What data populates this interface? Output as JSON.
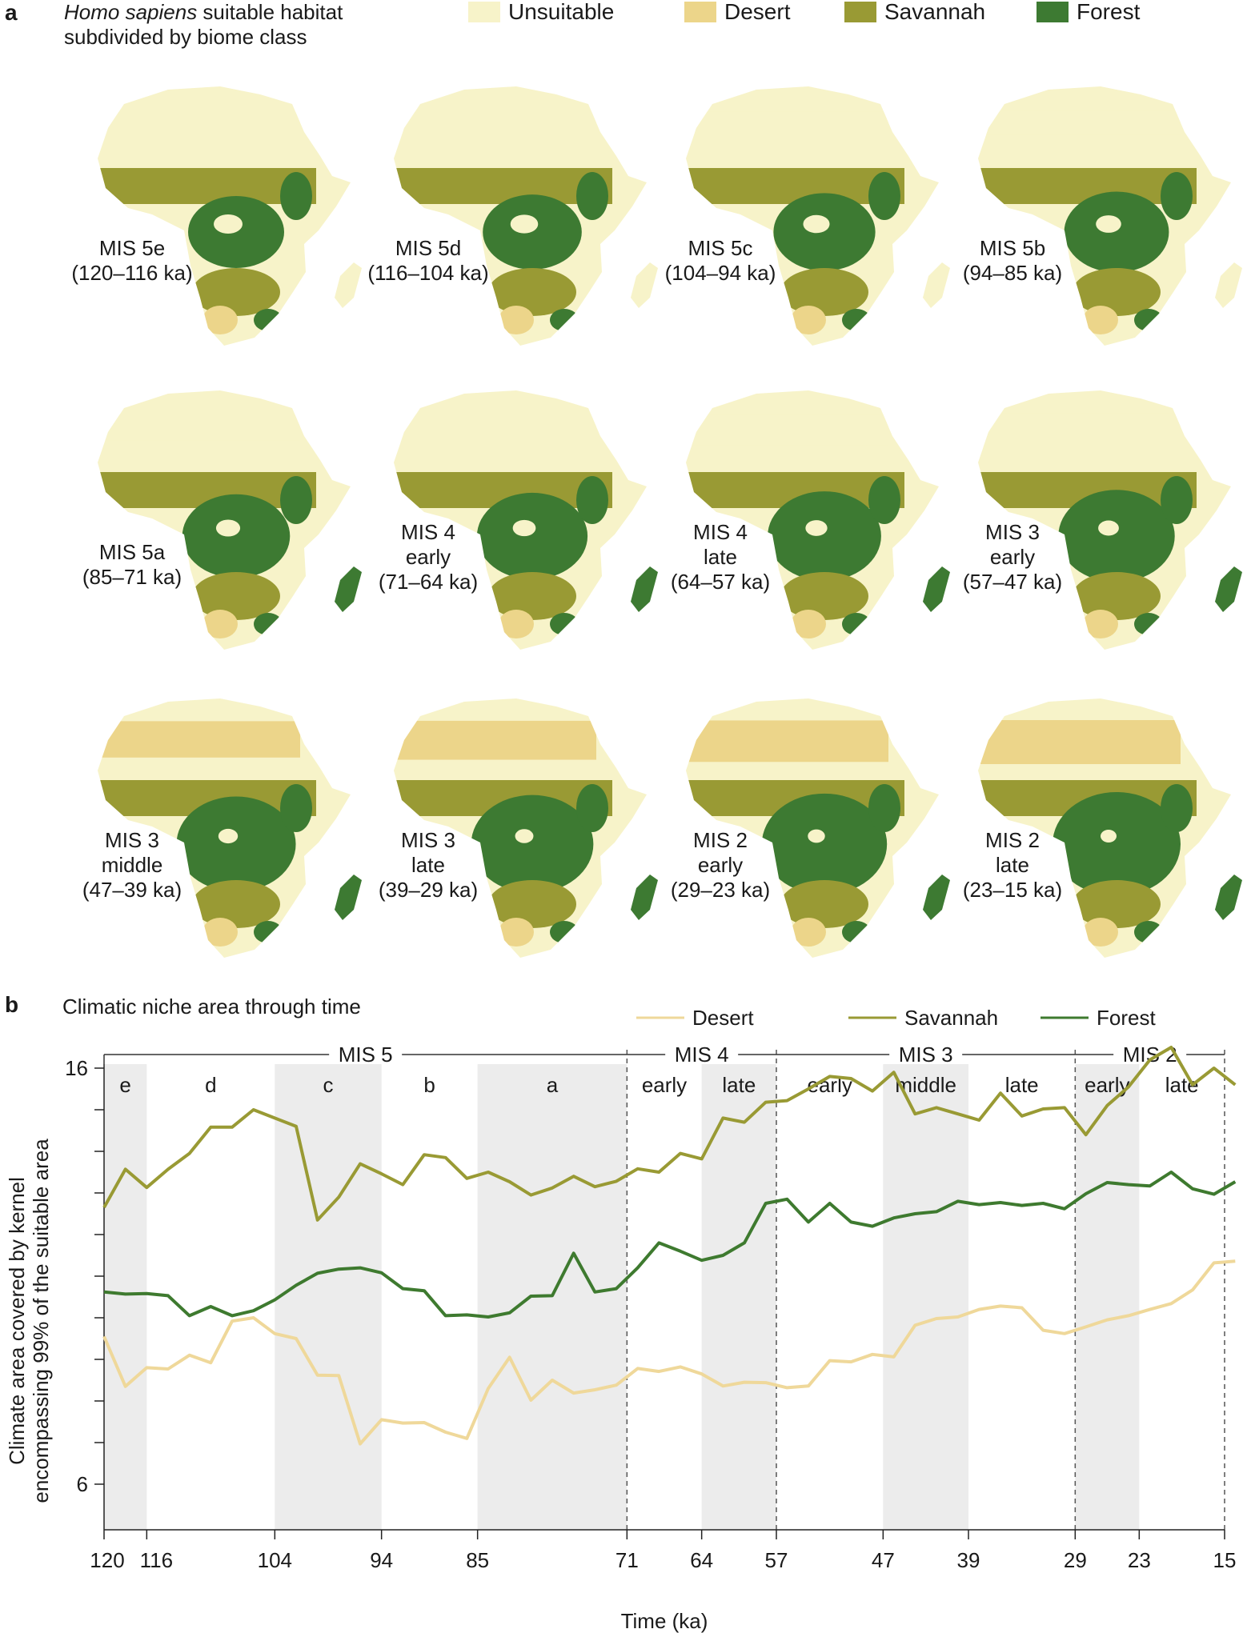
{
  "panel_a": {
    "letter": "a",
    "title_italic": "Homo sapiens",
    "title_rest": " suitable habitat",
    "title_line2": "subdivided by biome class",
    "legend": [
      {
        "label": "Unsuitable",
        "color": "#f7f3c9"
      },
      {
        "label": "Desert",
        "color": "#ecd58a"
      },
      {
        "label": "Savannah",
        "color": "#999a34"
      },
      {
        "label": "Forest",
        "color": "#3d7a32"
      }
    ],
    "maps": [
      {
        "l1": "MIS 5e",
        "l2": "(120–116 ka)",
        "l3": ""
      },
      {
        "l1": "MIS 5d",
        "l2": "(116–104 ka)",
        "l3": ""
      },
      {
        "l1": "MIS 5c",
        "l2": "(104–94 ka)",
        "l3": ""
      },
      {
        "l1": "MIS 5b",
        "l2": "(94–85 ka)",
        "l3": ""
      },
      {
        "l1": "MIS 5a",
        "l2": "(85–71 ka)",
        "l3": ""
      },
      {
        "l1": "MIS 4",
        "l2": "early",
        "l3": "(71–64 ka)"
      },
      {
        "l1": "MIS 4",
        "l2": "late",
        "l3": "(64–57 ka)"
      },
      {
        "l1": "MIS 3",
        "l2": "early",
        "l3": "(57–47 ka)"
      },
      {
        "l1": "MIS 3",
        "l2": "middle",
        "l3": "(47–39 ka)"
      },
      {
        "l1": "MIS 3",
        "l2": "late",
        "l3": "(39–29 ka)"
      },
      {
        "l1": "MIS 2",
        "l2": "early",
        "l3": "(29–23 ka)"
      },
      {
        "l1": "MIS 2",
        "l2": "late",
        "l3": "(23–15 ka)"
      }
    ]
  },
  "panel_b": {
    "letter": "b",
    "title": "Climatic niche area through time"
  },
  "chart_data": {
    "type": "line",
    "title": "Climatic niche area through time",
    "xlabel": "Time (ka)",
    "ylabel_line1": "Climate area covered by kernel",
    "ylabel_line2": "encompassing 99% of the suitable area",
    "xlim": [
      120,
      15
    ],
    "ylim": [
      5,
      16
    ],
    "ytick_labels": [
      "6",
      "16"
    ],
    "yticks": [
      6,
      7,
      8,
      9,
      10,
      11,
      12,
      13,
      14,
      15,
      16
    ],
    "xticks": [
      120,
      116,
      104,
      94,
      85,
      71,
      64,
      57,
      47,
      39,
      29,
      23,
      15
    ],
    "xtick_labels": [
      "120",
      "116",
      "104",
      "94",
      "85",
      "71",
      "64",
      "57",
      "47",
      "39",
      "29",
      "23",
      "15"
    ],
    "shaded_intervals": [
      [
        120,
        116
      ],
      [
        104,
        94
      ],
      [
        85,
        71
      ],
      [
        64,
        57
      ],
      [
        47,
        39
      ],
      [
        29,
        23
      ]
    ],
    "stage_boundaries": [
      71,
      57,
      29,
      15
    ],
    "stages": [
      {
        "label": "MIS 5",
        "from": 120,
        "to": 71
      },
      {
        "label": "MIS 4",
        "from": 71,
        "to": 57
      },
      {
        "label": "MIS 3",
        "from": 57,
        "to": 29
      },
      {
        "label": "MIS 2",
        "from": 29,
        "to": 15
      }
    ],
    "substages": [
      {
        "label": "e",
        "at": 118
      },
      {
        "label": "d",
        "at": 110
      },
      {
        "label": "c",
        "at": 99
      },
      {
        "label": "b",
        "at": 89.5
      },
      {
        "label": "a",
        "at": 78
      },
      {
        "label": "early",
        "at": 67.5
      },
      {
        "label": "late",
        "at": 60.5
      },
      {
        "label": "early",
        "at": 52
      },
      {
        "label": "middle",
        "at": 43
      },
      {
        "label": "late",
        "at": 34
      },
      {
        "label": "early",
        "at": 26
      },
      {
        "label": "late",
        "at": 19
      }
    ],
    "series": [
      {
        "name": "Desert",
        "color": "#efd89a",
        "x": [
          120,
          118,
          116,
          114,
          112,
          110,
          108,
          106,
          104,
          102,
          100,
          98,
          96,
          94,
          92,
          90,
          88,
          86,
          84,
          82,
          80,
          78,
          76,
          74,
          72,
          70,
          68,
          66,
          64,
          62,
          60,
          58,
          56,
          54,
          52,
          50,
          48,
          46,
          44,
          42,
          40,
          38,
          36,
          34,
          32,
          30,
          28,
          26,
          24,
          22,
          20,
          18,
          16,
          14
        ],
        "y": [
          9.55,
          8.35,
          8.8,
          8.77,
          9.1,
          8.92,
          9.92,
          10,
          9.62,
          9.5,
          8.62,
          8.61,
          6.97,
          7.55,
          7.47,
          7.48,
          7.25,
          7.1,
          8.3,
          9.05,
          8.02,
          8.5,
          8.19,
          8.27,
          8.38,
          8.78,
          8.71,
          8.82,
          8.65,
          8.36,
          8.45,
          8.44,
          8.32,
          8.36,
          8.97,
          8.94,
          9.12,
          9.06,
          9.82,
          9.98,
          10.02,
          10.2,
          10.28,
          10.24,
          9.7,
          9.62,
          9.78,
          9.95,
          10.05,
          10.2,
          10.34,
          10.67,
          11.32,
          11.36
        ]
      },
      {
        "name": "Savannah",
        "color": "#999a34",
        "x": [
          120,
          118,
          116,
          114,
          112,
          110,
          108,
          106,
          104,
          102,
          100,
          98,
          96,
          94,
          92,
          90,
          88,
          86,
          84,
          82,
          80,
          78,
          76,
          74,
          72,
          70,
          68,
          66,
          64,
          62,
          60,
          58,
          56,
          54,
          52,
          50,
          48,
          46,
          44,
          42,
          40,
          38,
          36,
          34,
          32,
          30,
          28,
          26,
          24,
          22,
          20,
          18,
          16,
          14
        ],
        "y": [
          12.65,
          13.57,
          13.13,
          13.57,
          13.95,
          14.58,
          14.58,
          15,
          14.8,
          14.6,
          12.35,
          12.9,
          13.7,
          13.46,
          13.2,
          13.92,
          13.85,
          13.35,
          13.5,
          13.27,
          12.95,
          13.12,
          13.4,
          13.15,
          13.28,
          13.58,
          13.5,
          13.95,
          13.82,
          14.8,
          14.7,
          15.18,
          15.22,
          15.5,
          15.8,
          15.75,
          15.45,
          15.9,
          14.9,
          15.05,
          14.9,
          14.75,
          15.4,
          14.85,
          15.02,
          15.05,
          14.4,
          15.1,
          15.55,
          16.2,
          16.5,
          15.6,
          16,
          15.6
        ]
      },
      {
        "name": "Forest",
        "color": "#3e7a2f",
        "x": [
          120,
          118,
          116,
          114,
          112,
          110,
          108,
          106,
          104,
          102,
          100,
          98,
          96,
          94,
          92,
          90,
          88,
          86,
          84,
          82,
          80,
          78,
          76,
          74,
          72,
          70,
          68,
          66,
          64,
          62,
          60,
          58,
          56,
          54,
          52,
          50,
          48,
          46,
          44,
          42,
          40,
          38,
          36,
          34,
          32,
          30,
          28,
          26,
          24,
          22,
          20,
          18,
          16,
          14
        ],
        "y": [
          10.62,
          10.57,
          10.58,
          10.53,
          10.05,
          10.27,
          10.05,
          10.17,
          10.43,
          10.78,
          11.07,
          11.17,
          11.2,
          11.08,
          10.7,
          10.65,
          10.05,
          10.07,
          10.02,
          10.12,
          10.52,
          10.53,
          11.55,
          10.62,
          10.7,
          11.2,
          11.8,
          11.6,
          11.38,
          11.5,
          11.8,
          12.75,
          12.85,
          12.3,
          12.75,
          12.3,
          12.2,
          12.4,
          12.5,
          12.55,
          12.8,
          12.72,
          12.77,
          12.7,
          12.75,
          12.62,
          12.98,
          13.25,
          13.2,
          13.17,
          13.5,
          13.1,
          12.97,
          13.27
        ]
      }
    ]
  }
}
